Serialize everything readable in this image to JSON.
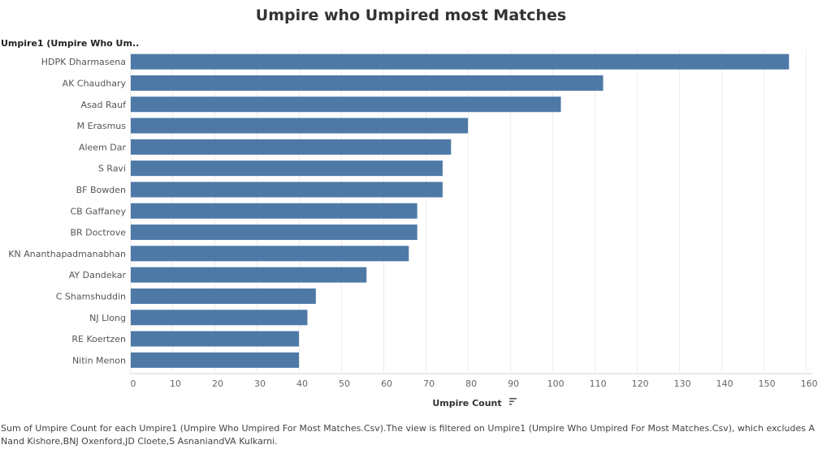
{
  "chart_data": {
    "type": "bar",
    "orientation": "horizontal",
    "title": "Umpire who Umpired most Matches",
    "row_header": "Umpire1 (Umpire Who Um..",
    "xlabel": "Umpire Count",
    "categories": [
      "HDPK Dharmasena",
      "AK Chaudhary",
      "Asad Rauf",
      "M Erasmus",
      "Aleem Dar",
      "S Ravi",
      "BF Bowden",
      "CB Gaffaney",
      "BR Doctrove",
      "KN Ananthapadmanabhan",
      "AY Dandekar",
      "C Shamshuddin",
      "NJ Llong",
      "RE Koertzen",
      "Nitin Menon"
    ],
    "values": [
      156,
      112,
      102,
      80,
      76,
      74,
      74,
      68,
      68,
      66,
      56,
      44,
      42,
      40,
      40
    ],
    "xlim": [
      0,
      160
    ],
    "xticks": [
      0,
      10,
      20,
      30,
      40,
      50,
      60,
      70,
      80,
      90,
      100,
      110,
      120,
      130,
      140,
      150,
      160
    ],
    "grid": true,
    "bar_color": "#4e79a7"
  },
  "caption": "Sum of Umpire Count for each Umpire1 (Umpire Who Umpired For Most Matches.Csv).The view is filtered on Umpire1 (Umpire Who Umpired For Most Matches.Csv), which excludes A Nand Kishore,BNJ Oxenford,JD Cloete,S AsnaniandVA Kulkarni."
}
